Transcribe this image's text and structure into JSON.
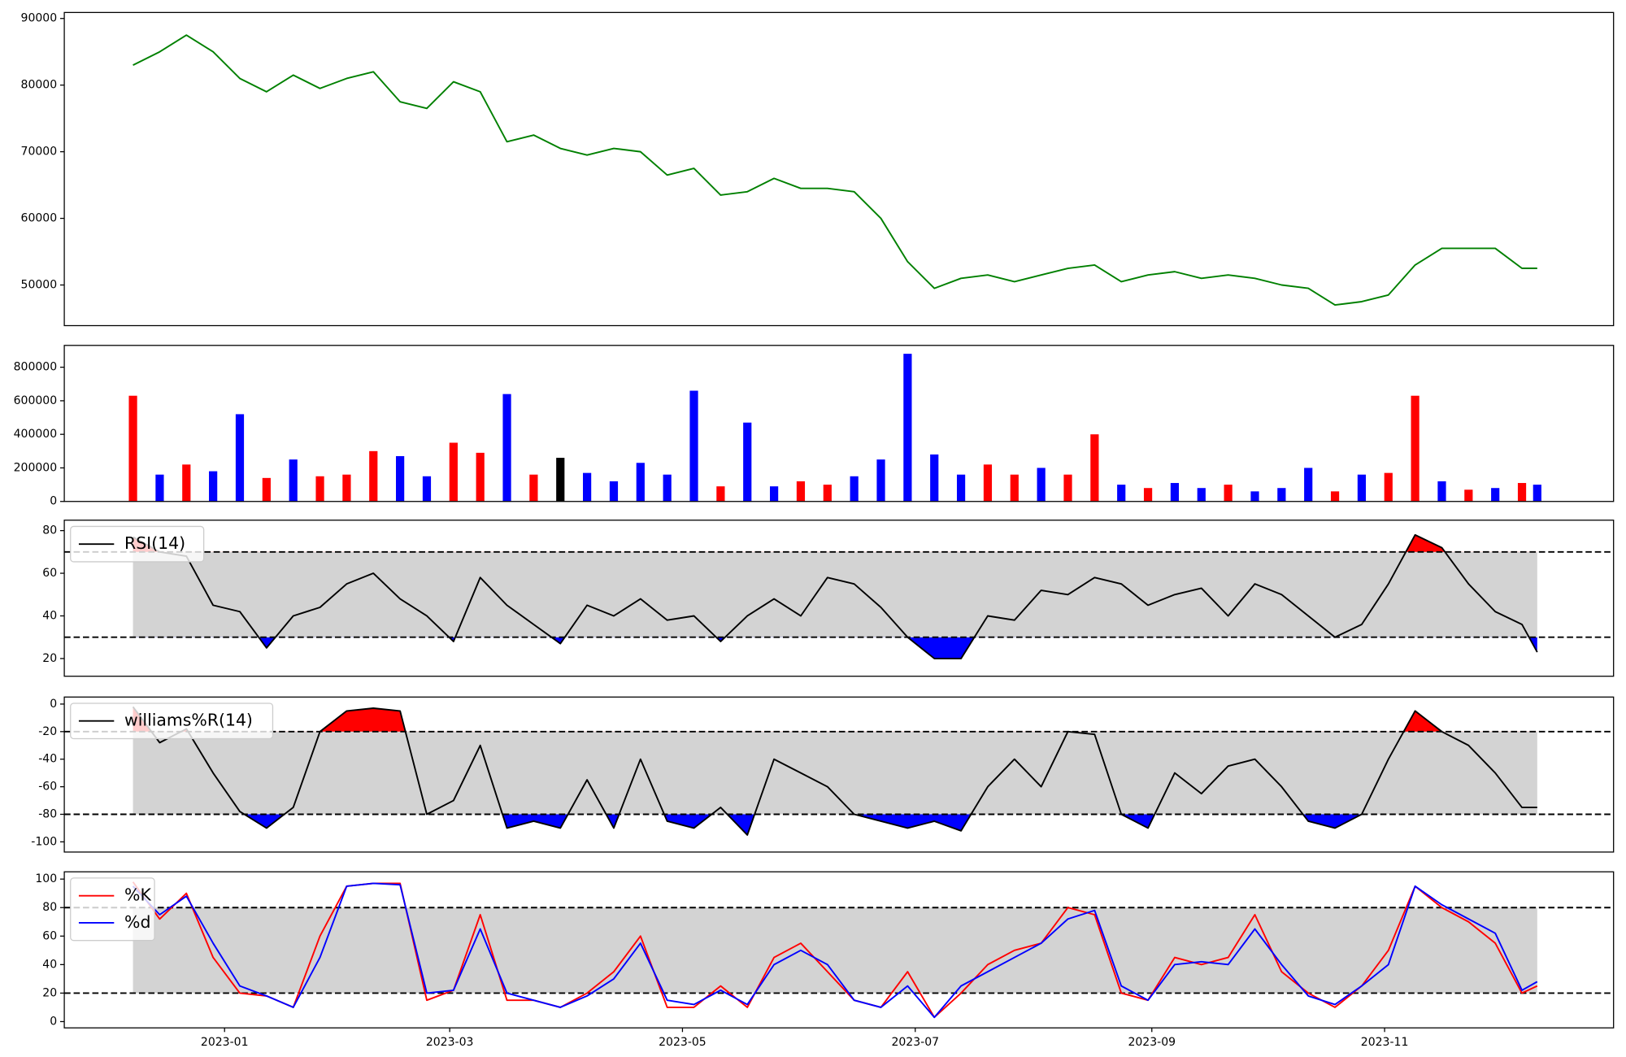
{
  "x_axis": {
    "x": [
      "2022-12-08",
      "2022-12-15",
      "2022-12-22",
      "2022-12-29",
      "2023-01-05",
      "2023-01-12",
      "2023-01-19",
      "2023-01-26",
      "2023-02-02",
      "2023-02-09",
      "2023-02-16",
      "2023-02-23",
      "2023-03-02",
      "2023-03-09",
      "2023-03-16",
      "2023-03-23",
      "2023-03-30",
      "2023-04-06",
      "2023-04-13",
      "2023-04-20",
      "2023-04-27",
      "2023-05-04",
      "2023-05-11",
      "2023-05-18",
      "2023-05-25",
      "2023-06-01",
      "2023-06-08",
      "2023-06-15",
      "2023-06-22",
      "2023-06-29",
      "2023-07-06",
      "2023-07-13",
      "2023-07-20",
      "2023-07-27",
      "2023-08-03",
      "2023-08-10",
      "2023-08-17",
      "2023-08-24",
      "2023-08-31",
      "2023-09-07",
      "2023-09-14",
      "2023-09-21",
      "2023-09-28",
      "2023-10-05",
      "2023-10-12",
      "2023-10-19",
      "2023-10-26",
      "2023-11-02",
      "2023-11-09",
      "2023-11-16",
      "2023-11-23",
      "2023-11-30",
      "2023-12-07",
      "2023-12-11"
    ],
    "xlim": [
      "2022-11-20",
      "2023-12-31"
    ],
    "xticks": [
      {
        "value": "2023-01-01",
        "label": "2023-01"
      },
      {
        "value": "2023-03-01",
        "label": "2023-03"
      },
      {
        "value": "2023-05-01",
        "label": "2023-05"
      },
      {
        "value": "2023-07-01",
        "label": "2023-07"
      },
      {
        "value": "2023-09-01",
        "label": "2023-09"
      },
      {
        "value": "2023-11-01",
        "label": "2023-11"
      }
    ]
  },
  "chart_data": [
    {
      "type": "line",
      "series": [
        {
          "color": "#008000",
          "values": [
            83000,
            85000,
            87500,
            85000,
            81000,
            79000,
            81500,
            79500,
            81000,
            82000,
            77500,
            76500,
            80500,
            79000,
            71500,
            72500,
            70500,
            69500,
            70500,
            70000,
            66500,
            67500,
            63500,
            64000,
            66000,
            64500,
            64500,
            64000,
            60000,
            53500,
            49500,
            51000,
            51500,
            50500,
            51500,
            52500,
            53000,
            50500,
            51500,
            52000,
            51000,
            51500,
            51000,
            50000,
            49500,
            47000,
            47500,
            48500,
            53000,
            55500,
            55500,
            55500,
            52500,
            52500
          ]
        }
      ],
      "ylim": [
        43900,
        90900
      ],
      "yticks": [
        50000,
        60000,
        70000,
        80000,
        90000
      ]
    },
    {
      "type": "bar",
      "values": [
        630000,
        160000,
        220000,
        180000,
        520000,
        140000,
        250000,
        150000,
        160000,
        300000,
        270000,
        150000,
        350000,
        290000,
        640000,
        160000,
        260000,
        170000,
        120000,
        230000,
        160000,
        660000,
        90000,
        470000,
        90000,
        120000,
        100000,
        150000,
        250000,
        880000,
        280000,
        160000,
        220000,
        160000,
        200000,
        160000,
        400000,
        100000,
        80000,
        110000,
        80000,
        100000,
        60000,
        80000,
        200000,
        60000,
        160000,
        170000,
        630000,
        120000,
        70000,
        80000,
        110000,
        100000
      ],
      "colors": [
        "#ff0000",
        "#0000ff",
        "#ff0000",
        "#0000ff",
        "#0000ff",
        "#ff0000",
        "#0000ff",
        "#ff0000",
        "#ff0000",
        "#ff0000",
        "#0000ff",
        "#0000ff",
        "#ff0000",
        "#ff0000",
        "#0000ff",
        "#ff0000",
        "#000000",
        "#0000ff",
        "#0000ff",
        "#0000ff",
        "#0000ff",
        "#0000ff",
        "#ff0000",
        "#0000ff",
        "#0000ff",
        "#ff0000",
        "#ff0000",
        "#0000ff",
        "#0000ff",
        "#0000ff",
        "#0000ff",
        "#0000ff",
        "#ff0000",
        "#ff0000",
        "#0000ff",
        "#ff0000",
        "#ff0000",
        "#0000ff",
        "#ff0000",
        "#0000ff",
        "#0000ff",
        "#ff0000",
        "#0000ff",
        "#0000ff",
        "#0000ff",
        "#ff0000",
        "#0000ff",
        "#ff0000",
        "#ff0000",
        "#0000ff",
        "#ff0000",
        "#0000ff",
        "#ff0000",
        "#0000ff"
      ],
      "ylim": [
        0,
        930000
      ],
      "yticks": [
        0,
        200000,
        400000,
        600000,
        800000
      ]
    },
    {
      "type": "oscillator",
      "series": [
        {
          "name": "RSI(14)",
          "color": "#000000",
          "values": [
            77,
            70,
            68,
            45,
            42,
            25,
            40,
            44,
            55,
            60,
            48,
            40,
            28,
            58,
            45,
            36,
            27,
            45,
            40,
            48,
            38,
            40,
            28,
            40,
            48,
            40,
            58,
            55,
            44,
            30,
            20,
            20,
            40,
            38,
            52,
            50,
            58,
            55,
            45,
            50,
            53,
            40,
            55,
            50,
            40,
            30,
            36,
            55,
            78,
            72,
            55,
            42,
            36,
            23
          ]
        }
      ],
      "upper": 70,
      "lower": 30,
      "fill_extremes": true,
      "legend": "upper left",
      "ylim": [
        11.7,
        84.9
      ],
      "yticks": [
        20,
        40,
        60,
        80
      ]
    },
    {
      "type": "oscillator",
      "series": [
        {
          "name": "williams%R(14)",
          "color": "#000000",
          "values": [
            -2,
            -28,
            -18,
            -50,
            -78,
            -90,
            -75,
            -20,
            -5,
            -3,
            -5,
            -80,
            -70,
            -30,
            -90,
            -85,
            -90,
            -55,
            -90,
            -40,
            -85,
            -90,
            -75,
            -95,
            -40,
            -50,
            -60,
            -80,
            -85,
            -90,
            -85,
            -92,
            -60,
            -40,
            -60,
            -20,
            -22,
            -80,
            -90,
            -50,
            -65,
            -45,
            -40,
            -60,
            -85,
            -90,
            -80,
            -40,
            -5,
            -20,
            -30,
            -50,
            -75,
            -75
          ]
        }
      ],
      "upper": -20,
      "lower": -80,
      "fill_extremes": true,
      "legend": "upper left",
      "ylim": [
        -107.4,
        5.1
      ],
      "yticks": [
        -100,
        -80,
        -60,
        -40,
        -20,
        0
      ]
    },
    {
      "type": "oscillator",
      "series": [
        {
          "name": "%K",
          "color": "#ff0000",
          "values": [
            98,
            72,
            90,
            45,
            20,
            18,
            10,
            60,
            95,
            97,
            97,
            15,
            22,
            75,
            15,
            15,
            10,
            20,
            35,
            60,
            10,
            10,
            25,
            10,
            45,
            55,
            35,
            15,
            10,
            35,
            3,
            20,
            40,
            50,
            55,
            80,
            75,
            20,
            15,
            45,
            40,
            45,
            75,
            35,
            20,
            10,
            25,
            50,
            95,
            80,
            70,
            55,
            20,
            25
          ]
        },
        {
          "name": "%d",
          "color": "#0000ff",
          "values": [
            95,
            75,
            88,
            55,
            25,
            18,
            10,
            45,
            95,
            97,
            96,
            20,
            22,
            65,
            20,
            15,
            10,
            18,
            30,
            55,
            15,
            12,
            22,
            12,
            40,
            50,
            40,
            15,
            10,
            25,
            3,
            25,
            35,
            45,
            55,
            72,
            78,
            25,
            15,
            40,
            42,
            40,
            65,
            40,
            18,
            12,
            25,
            40,
            95,
            82,
            72,
            62,
            22,
            28
          ]
        }
      ],
      "upper": 80,
      "lower": 20,
      "fill_extremes": false,
      "legend": "upper left",
      "ylim": [
        -4.4,
        105.1
      ],
      "yticks": [
        0,
        20,
        40,
        60,
        80,
        100
      ]
    }
  ]
}
